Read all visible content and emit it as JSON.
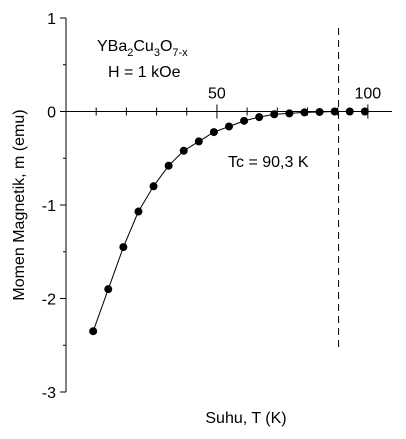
{
  "chart_data": {
    "type": "scatter",
    "xlabel": "Suhu, T (K)",
    "ylabel": "Momen Magnetik, m (emu)",
    "xlim": [
      0,
      108
    ],
    "ylim": [
      -3,
      1
    ],
    "x_ticks": [
      50,
      100
    ],
    "y_ticks": [
      1,
      0,
      -1,
      -2,
      -3
    ],
    "grid": false,
    "legend": "none",
    "series": [
      {
        "line_color": "#000000",
        "marker_color": "#000000",
        "points": [
          {
            "x": 9,
            "y": -2.35
          },
          {
            "x": 14,
            "y": -1.9
          },
          {
            "x": 19,
            "y": -1.45
          },
          {
            "x": 24,
            "y": -1.07
          },
          {
            "x": 29,
            "y": -0.8
          },
          {
            "x": 34,
            "y": -0.58
          },
          {
            "x": 39,
            "y": -0.42
          },
          {
            "x": 44,
            "y": -0.32
          },
          {
            "x": 49,
            "y": -0.22
          },
          {
            "x": 54,
            "y": -0.16
          },
          {
            "x": 59,
            "y": -0.1
          },
          {
            "x": 64,
            "y": -0.06
          },
          {
            "x": 69,
            "y": -0.03
          },
          {
            "x": 74,
            "y": -0.02
          },
          {
            "x": 79,
            "y": -0.01
          },
          {
            "x": 84,
            "y": -0.005
          },
          {
            "x": 89,
            "y": 0
          },
          {
            "x": 94,
            "y": 0
          },
          {
            "x": 99,
            "y": 0
          }
        ]
      }
    ],
    "annotations": {
      "compound": {
        "base": "YBa",
        "s1": "2",
        "mid1": "Cu",
        "s2": "3",
        "mid2": "O",
        "s3": "7-x"
      },
      "field": "H = 1 kOe",
      "tc_label": "Tc = 90,3 K",
      "tc_value": 90.3
    }
  }
}
